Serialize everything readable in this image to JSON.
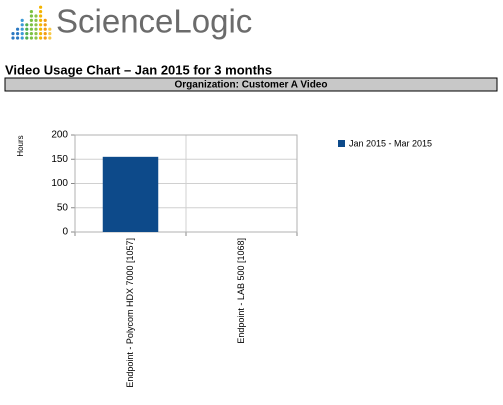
{
  "header": {
    "logo": "ScienceLogic"
  },
  "chart_data": {
    "type": "bar",
    "title": "Video Usage Chart – Jan 2015 for 3 months",
    "subtitle": "Organization: Customer A Video",
    "y_label": "Hours",
    "categories": [
      "Endpoint - Polycom HDX 7000 [1057]",
      "Endpoint - LAB 500 [1068]"
    ],
    "series": [
      {
        "name": "Jan 2015 - Mar 2015",
        "color": "#0d4a8a",
        "values": [
          155,
          0
        ]
      }
    ],
    "ylim": [
      0,
      200
    ],
    "yticks": [
      0,
      50,
      100,
      150,
      200
    ],
    "grid": true
  }
}
